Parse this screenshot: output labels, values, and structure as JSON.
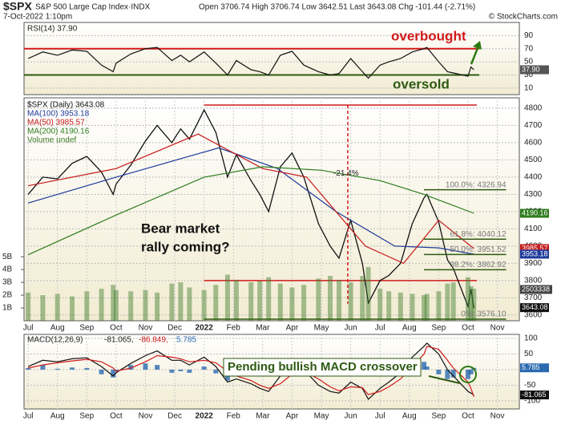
{
  "header": {
    "symbol": "$SPX",
    "name": "S&P 500 Large Cap Index·INDX",
    "date": "7-Oct-2022 1:10pm",
    "quote": "Open 3706.74 High 3706.74 Low 3642.51 Last 3643.08 Chg -101.44 (-2.71%)",
    "credit": "© StockCharts.com"
  },
  "chart_data": [
    {
      "type": "line",
      "title": "RSI(14) 37.90",
      "xlim": [
        -0.14,
        16.75
      ],
      "ylim": [
        0,
        110
      ],
      "yticks": [
        90,
        70,
        50,
        30,
        10
      ],
      "x": [
        0,
        0.5,
        1,
        1.5,
        2,
        2.5,
        2.9,
        3,
        3.5,
        4,
        4.4,
        4.9,
        5.2,
        5.5,
        6.0,
        6.4,
        6.8,
        7.1,
        7.6,
        7.9,
        8.2,
        8.6,
        9.0,
        9.4,
        9.9,
        10.3,
        10.6,
        11.0,
        11.4,
        11.6,
        12.0,
        12.3,
        12.7,
        13.1,
        13.5,
        13.6,
        14.0,
        14.3,
        14.5,
        15.0,
        15.1,
        15.2
      ],
      "series": [
        {
          "name": "RSI(14)",
          "color": "#111111",
          "values": [
            55,
            65,
            60,
            68,
            66,
            45,
            35,
            48,
            62,
            70,
            72,
            52,
            60,
            50,
            65,
            48,
            30,
            52,
            38,
            35,
            30,
            60,
            66,
            45,
            35,
            30,
            32,
            55,
            35,
            25,
            45,
            50,
            55,
            65,
            70,
            72,
            50,
            35,
            33,
            28,
            42,
            38
          ]
        }
      ],
      "levels": [
        {
          "value": 70,
          "color": "#d11a1a"
        },
        {
          "value": 30,
          "color": "#2d5a12"
        }
      ],
      "annotations": [
        "overbought",
        "oversold"
      ],
      "tags": [
        {
          "value": 37.9,
          "label": "37.90",
          "color": "#555555"
        }
      ]
    },
    {
      "type": "line",
      "xlim": [
        -0.14,
        16.75
      ],
      "ylim": [
        3567,
        4860
      ],
      "y2lim": [
        0,
        17.4
      ],
      "grid": true,
      "yticks": [
        4800,
        4700,
        4600,
        4500,
        4400,
        4300,
        4200,
        4100,
        4000,
        3900,
        3800,
        3700,
        3600
      ],
      "y2ticks": [
        {
          "value": 5,
          "label": "5B"
        },
        {
          "value": 4,
          "label": "4B"
        },
        {
          "value": 3,
          "label": "3B"
        },
        {
          "value": 2,
          "label": "2B"
        },
        {
          "value": 1,
          "label": "1B"
        }
      ],
      "xticks": [
        {
          "value": 0,
          "label": "Jul"
        },
        {
          "value": 1,
          "label": "Aug"
        },
        {
          "value": 2,
          "label": "Sep"
        },
        {
          "value": 3,
          "label": "Oct"
        },
        {
          "value": 4,
          "label": "Nov"
        },
        {
          "value": 5,
          "label": "Dec"
        },
        {
          "value": 6,
          "label": "2022"
        },
        {
          "value": 7,
          "label": "Feb"
        },
        {
          "value": 8,
          "label": "Mar"
        },
        {
          "value": 9,
          "label": "Apr"
        },
        {
          "value": 10,
          "label": "May"
        },
        {
          "value": 11,
          "label": "Jun"
        },
        {
          "value": 12,
          "label": "Jul"
        },
        {
          "value": 13,
          "label": "Aug"
        },
        {
          "value": 14,
          "label": "Sep"
        },
        {
          "value": 15,
          "label": "Oct"
        },
        {
          "value": 16,
          "label": "Nov"
        }
      ],
      "x": [
        0,
        0.5,
        1,
        1.5,
        2,
        2.5,
        2.9,
        3,
        3.5,
        4,
        4.4,
        4.9,
        5.2,
        5.5,
        6.0,
        6.4,
        6.8,
        7.1,
        7.6,
        7.9,
        8.2,
        8.6,
        9.0,
        9.4,
        9.9,
        10.3,
        10.6,
        11.0,
        11.4,
        11.6,
        12.0,
        12.3,
        12.7,
        13.1,
        13.5,
        13.6,
        14.0,
        14.3,
        14.5,
        15.0,
        15.1,
        15.2
      ],
      "series": [
        {
          "name": "$SPX (Daily) 3643.08",
          "color": "#111111",
          "values": [
            4300,
            4400,
            4390,
            4480,
            4520,
            4430,
            4300,
            4360,
            4470,
            4610,
            4700,
            4600,
            4680,
            4620,
            4790,
            4660,
            4400,
            4530,
            4380,
            4300,
            4200,
            4460,
            4540,
            4400,
            4130,
            4000,
            3930,
            4150,
            3900,
            3670,
            3800,
            3830,
            3900,
            4130,
            4280,
            4300,
            4140,
            3920,
            3870,
            3650,
            3750,
            3640
          ]
        },
        {
          "name": "MA(100) 3953.18",
          "color": "#1f3a9a",
          "x": [
            0,
            3,
            6.5,
            8.5,
            10.5,
            12.5,
            14,
            15.2
          ],
          "values": [
            4250,
            4400,
            4570,
            4450,
            4200,
            4000,
            3990,
            3953.18
          ]
        },
        {
          "name": "MA(50) 3985.57",
          "color": "#c41818",
          "x": [
            0,
            3,
            5.8,
            8,
            9.5,
            11.5,
            12.8,
            14,
            15.2
          ],
          "values": [
            4350,
            4450,
            4650,
            4450,
            4400,
            4000,
            3900,
            4150,
            3985.57
          ]
        },
        {
          "name": "MA(200) 4190.16",
          "color": "#2e7d1e",
          "x": [
            0,
            3,
            6,
            8,
            10,
            12,
            13.5,
            15.2
          ],
          "values": [
            3950,
            4180,
            4400,
            4460,
            4440,
            4380,
            4300,
            4190.16
          ]
        },
        {
          "name": "Volume undef",
          "color": "#3c7a2a",
          "type": "bar",
          "axis": "y2",
          "values": [
            2.2,
            2.0,
            2.1,
            1.9,
            2.3,
            2.5,
            2.8,
            2.4,
            2.3,
            2.4,
            2.2,
            2.9,
            3.0,
            2.6,
            2.4,
            2.8,
            3.6,
            3.2,
            3.0,
            3.1,
            3.4,
            2.9,
            2.6,
            2.8,
            3.3,
            3.5,
            3.2,
            3.0,
            3.5,
            4.2,
            2.5,
            2.3,
            2.2,
            2.1,
            2.0,
            2.1,
            2.3,
            2.9,
            3.0,
            3.4,
            2.7,
            2.5
          ]
        }
      ],
      "levels": [
        {
          "value": 4818,
          "color": "#d11a1a"
        },
        {
          "value": 3800,
          "color": "#d11a1a"
        }
      ],
      "drop": {
        "label": "-21.4%",
        "x": 10.9,
        "from": 4818,
        "to": 3666,
        "color": "#d11a1a"
      },
      "fib": [
        {
          "label": "100.0%: 4326.94",
          "value": 4326.94
        },
        {
          "label": "61.8%: 4040.12",
          "value": 4040.12
        },
        {
          "label": "50.0%: 3951.52",
          "value": 3951.52
        },
        {
          "label": "38.2%: 3862.92",
          "value": 3862.92
        },
        {
          "label": "0%: 3576.10",
          "value": 3576.1
        }
      ],
      "annotations": [
        "Bear market",
        "rally coming?",
        "2503338"
      ],
      "tags": [
        {
          "value": 4190.16,
          "color": "#2e7d1e"
        },
        {
          "value": 3985.57,
          "color": "#c41818"
        },
        {
          "value": 3953.18,
          "color": "#1f3a9a"
        },
        {
          "value": 3643.08,
          "color": "#111111"
        }
      ]
    },
    {
      "type": "line",
      "title": [
        "MACD(12,26,9)",
        "-81.065,",
        "-86.849,",
        "5.785"
      ],
      "xlim": [
        -0.14,
        16.75
      ],
      "ylim": [
        -126,
        113
      ],
      "grid": true,
      "yticks": [
        100,
        50,
        0,
        -50,
        -100
      ],
      "xticks": [
        {
          "value": 0,
          "label": "Jul"
        },
        {
          "value": 1,
          "label": "Aug"
        },
        {
          "value": 2,
          "label": "Sep"
        },
        {
          "value": 3,
          "label": "Oct"
        },
        {
          "value": 4,
          "label": "Nov"
        },
        {
          "value": 5,
          "label": "Dec"
        },
        {
          "value": 6,
          "label": "2022"
        },
        {
          "value": 7,
          "label": "Feb"
        },
        {
          "value": 8,
          "label": "Mar"
        },
        {
          "value": 9,
          "label": "Apr"
        },
        {
          "value": 10,
          "label": "May"
        },
        {
          "value": 11,
          "label": "Jun"
        },
        {
          "value": 12,
          "label": "Jul"
        },
        {
          "value": 13,
          "label": "Aug"
        },
        {
          "value": 14,
          "label": "Sep"
        },
        {
          "value": 15,
          "label": "Oct"
        },
        {
          "value": 16,
          "label": "Nov"
        }
      ],
      "x": [
        0,
        0.5,
        1,
        1.5,
        2,
        2.5,
        2.9,
        3,
        3.5,
        4,
        4.4,
        4.9,
        5.2,
        5.5,
        6.0,
        6.4,
        6.8,
        7.1,
        7.6,
        7.9,
        8.2,
        8.6,
        9.0,
        9.4,
        9.9,
        10.3,
        10.6,
        11.0,
        11.4,
        11.6,
        12.0,
        12.3,
        12.7,
        13.1,
        13.5,
        13.6,
        14.0,
        14.3,
        14.5,
        15.0,
        15.1,
        15.2
      ],
      "series": [
        {
          "name": "Histogram",
          "color": "#2a6ab0",
          "type": "bar",
          "values": [
            5,
            15,
            3,
            7,
            5,
            -15,
            -25,
            -5,
            15,
            20,
            15,
            -10,
            -5,
            -10,
            10,
            -12,
            -35,
            -10,
            -10,
            -10,
            -10,
            25,
            35,
            5,
            -20,
            -15,
            -7,
            15,
            -2,
            -15,
            10,
            15,
            20,
            30,
            25,
            10,
            -15,
            -30,
            -25,
            -30,
            -15,
            5.785
          ]
        },
        {
          "name": "MACD",
          "color": "#111111",
          "values": [
            10,
            30,
            25,
            35,
            38,
            10,
            -20,
            -10,
            20,
            45,
            60,
            30,
            30,
            15,
            40,
            10,
            -40,
            -30,
            -45,
            -60,
            -70,
            -20,
            20,
            0,
            -50,
            -70,
            -75,
            -40,
            -60,
            -95,
            -60,
            -40,
            -10,
            40,
            75,
            85,
            50,
            0,
            -20,
            -70,
            -75,
            -81.065
          ]
        },
        {
          "name": "Signal",
          "color": "#d11a1a",
          "values": [
            5,
            15,
            22,
            28,
            33,
            25,
            5,
            -5,
            5,
            25,
            45,
            40,
            35,
            25,
            30,
            22,
            -5,
            -20,
            -35,
            -50,
            -60,
            -45,
            -15,
            -5,
            -30,
            -55,
            -68,
            -55,
            -58,
            -80,
            -70,
            -55,
            -30,
            10,
            50,
            75,
            65,
            30,
            5,
            -40,
            -60,
            -86.849
          ]
        }
      ],
      "annotations": [
        "Pending bullish MACD crossover"
      ],
      "tags": [
        {
          "value": 5.785,
          "color": "#2a6ab0"
        },
        {
          "value": -81.065,
          "color": "#111111"
        }
      ]
    }
  ]
}
